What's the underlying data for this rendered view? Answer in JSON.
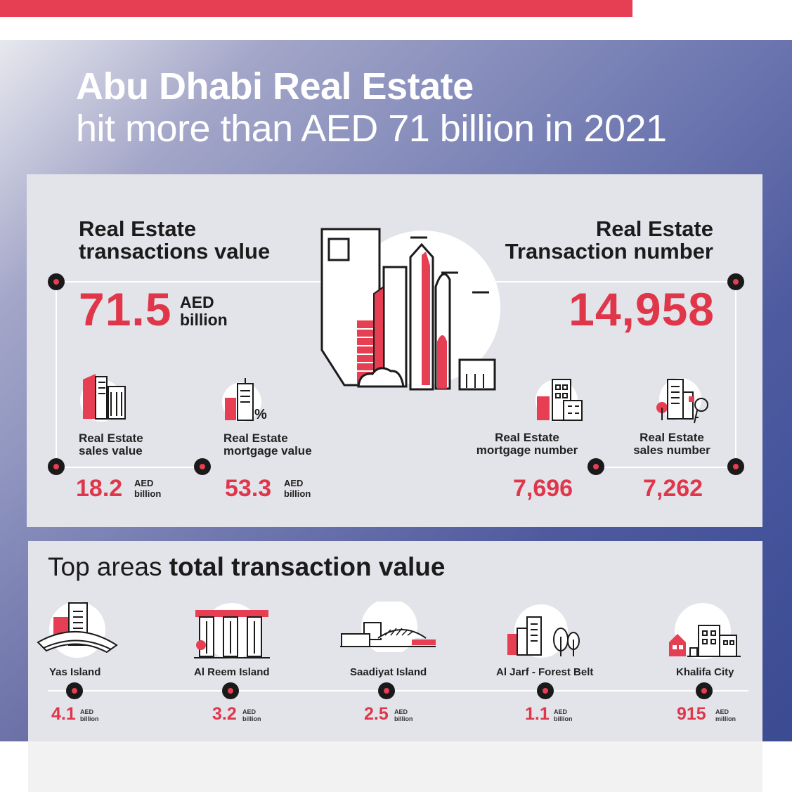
{
  "title": {
    "line1": "Abu Dhabi Real Estate",
    "line2": "hit more than AED 71 billion in 2021"
  },
  "left_main": {
    "heading_line1": "Real Estate",
    "heading_line2": "transactions value",
    "value": "71.5",
    "unit_line1": "AED",
    "unit_line2": "billion"
  },
  "right_main": {
    "heading_line1": "Real Estate",
    "heading_line2": "Transaction number",
    "value": "14,958"
  },
  "sub_stats": [
    {
      "label_line1": "Real Estate",
      "label_line2": "sales value",
      "value": "18.2",
      "unit_line1": "AED",
      "unit_line2": "billion",
      "icon": "buildings-icon"
    },
    {
      "label_line1": "Real Estate",
      "label_line2": "mortgage value",
      "value": "53.3",
      "unit_line1": "AED",
      "unit_line2": "billion",
      "icon": "mortgage-percent-icon"
    },
    {
      "label_line1": "Real Estate",
      "label_line2": "mortgage number",
      "value": "7,696",
      "icon": "calculator-building-icon"
    },
    {
      "label_line1": "Real Estate",
      "label_line2": "sales number",
      "value": "7,262",
      "icon": "key-building-icon"
    }
  ],
  "areas_section": {
    "title_regular": "Top areas ",
    "title_bold": "total transaction value",
    "areas": [
      {
        "name": "Yas Island",
        "value": "4.1",
        "unit_line1": "AED",
        "unit_line2": "billion",
        "icon": "yas-island-icon"
      },
      {
        "name": "Al Reem Island",
        "value": "3.2",
        "unit_line1": "AED",
        "unit_line2": "billion",
        "icon": "reem-island-icon"
      },
      {
        "name": "Saadiyat Island",
        "value": "2.5",
        "unit_line1": "AED",
        "unit_line2": "billion",
        "icon": "saadiyat-island-icon"
      },
      {
        "name": "Al Jarf - Forest Belt",
        "value": "1.1",
        "unit_line1": "AED",
        "unit_line2": "billion",
        "icon": "forest-belt-icon"
      },
      {
        "name": "Khalifa City",
        "value": "915",
        "unit_line1": "AED",
        "unit_line2": "million",
        "icon": "khalifa-city-icon"
      }
    ]
  },
  "colors": {
    "accent": "#e0364a",
    "bar": "#e63e52",
    "panel": "#e3e3ea",
    "dark": "#1b1b1b"
  }
}
